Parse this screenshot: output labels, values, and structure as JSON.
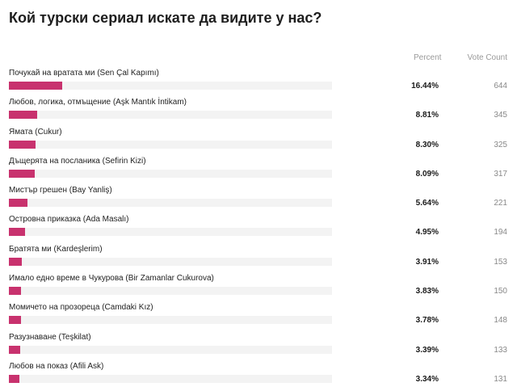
{
  "poll": {
    "title": "Кой турски сериал искате да видите у нас?",
    "header_percent": "Percent",
    "header_votes": "Vote Count",
    "bar_color": "#c8326e",
    "track_color": "#f3f3f3"
  },
  "options": [
    {
      "label": "Почукай на вратата ми (Sen Çal Kapımı)",
      "percent": "16.44%",
      "votes": "644",
      "share": 16.44
    },
    {
      "label": "Любов, логика, отмъщение (Aşk Mantık İntikam)",
      "percent": "8.81%",
      "votes": "345",
      "share": 8.81
    },
    {
      "label": "Ямата (Cukur)",
      "percent": "8.30%",
      "votes": "325",
      "share": 8.3
    },
    {
      "label": "Дъщерята на посланика (Sefirin Kizi)",
      "percent": "8.09%",
      "votes": "317",
      "share": 8.09
    },
    {
      "label": "Мистър грешен (Bay Yanliş)",
      "percent": "5.64%",
      "votes": "221",
      "share": 5.64
    },
    {
      "label": "Островна приказка (Ada Masalı)",
      "percent": "4.95%",
      "votes": "194",
      "share": 4.95
    },
    {
      "label": "Братята ми (Kardeşlerim)",
      "percent": "3.91%",
      "votes": "153",
      "share": 3.91
    },
    {
      "label": "Имало едно време в Чукурова (Bir Zamanlar Cukurova)",
      "percent": "3.83%",
      "votes": "150",
      "share": 3.83
    },
    {
      "label": "Момичето на прозореца (Camdaki Kız)",
      "percent": "3.78%",
      "votes": "148",
      "share": 3.78
    },
    {
      "label": "Разузнаване (Teşkilat)",
      "percent": "3.39%",
      "votes": "133",
      "share": 3.39
    },
    {
      "label": "Любов на показ (Afili Ask)",
      "percent": "3.34%",
      "votes": "131",
      "share": 3.34
    }
  ]
}
